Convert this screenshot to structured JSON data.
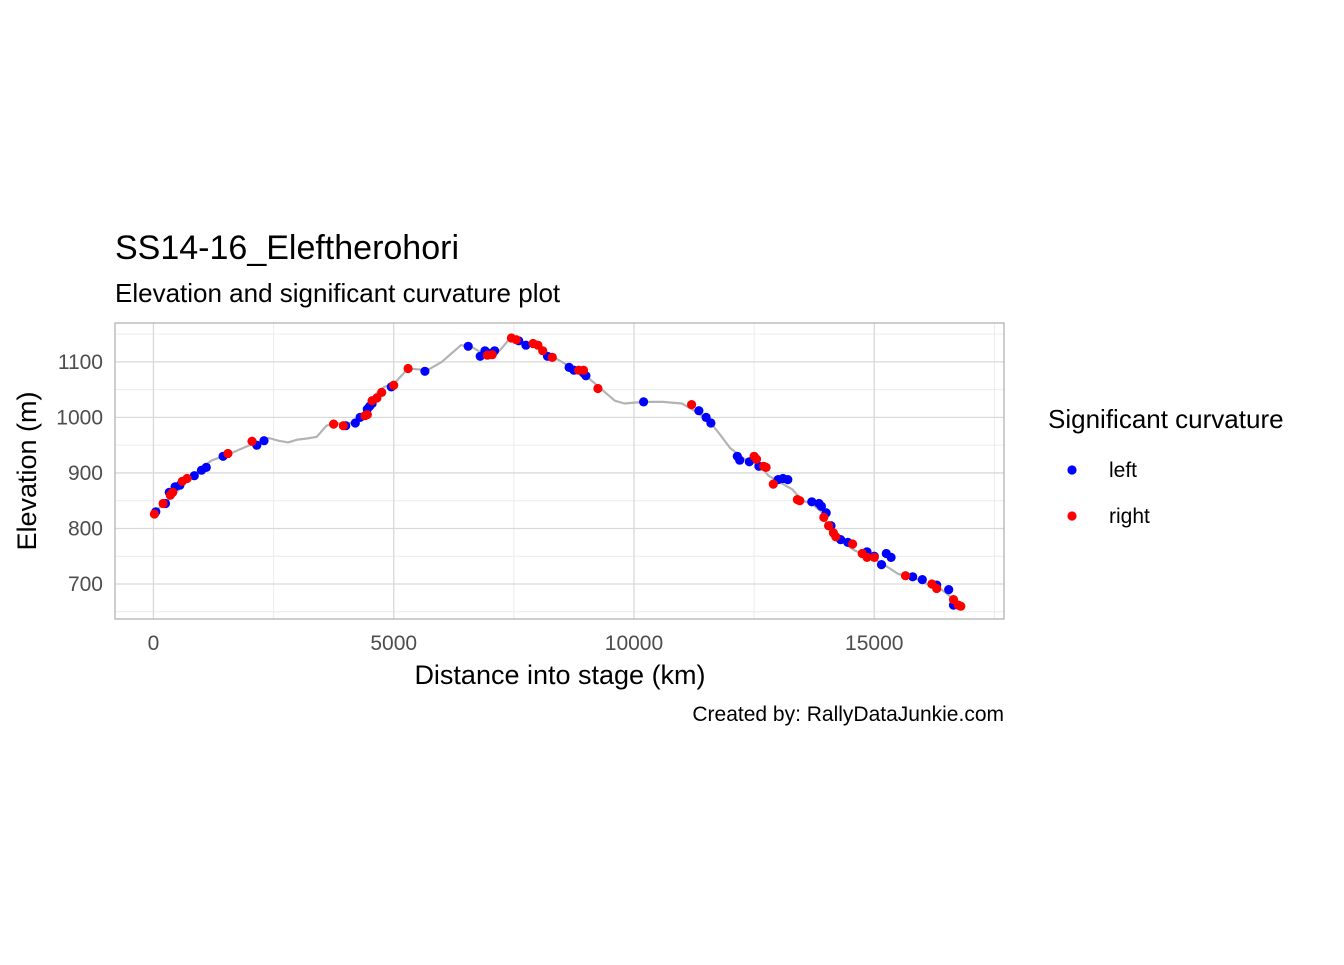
{
  "chart_data": {
    "type": "line",
    "title": "SS14-16_Eleftherohori",
    "subtitle": "Elevation and significant curvature plot",
    "xlabel": "Distance into stage (km)",
    "ylabel": "Elevation (m)",
    "caption": "Created by: RallyDataJunkie.com",
    "xlim": [
      -800,
      17700
    ],
    "ylim": [
      637,
      1170
    ],
    "x_ticks": [
      0,
      5000,
      10000,
      15000
    ],
    "x_tick_labels": [
      "0",
      "5000",
      "10000",
      "15000"
    ],
    "y_ticks": [
      700,
      800,
      900,
      1000,
      1100
    ],
    "y_tick_labels": [
      "700",
      "800",
      "900",
      "1000",
      "1100"
    ],
    "grid": true,
    "legend": {
      "title": "Significant curvature",
      "position": "right"
    },
    "colors": {
      "line": "#b3b3b3",
      "left": "#0000ff",
      "right": "#ff0000",
      "grid_major": "#d9d9d9",
      "grid_minor": "#ececec",
      "panel_border": "#b3b3b3"
    },
    "elevation_line": {
      "x": [
        0,
        400,
        800,
        1200,
        1600,
        2000,
        2200,
        2400,
        2600,
        2800,
        3000,
        3200,
        3400,
        3600,
        3800,
        4000,
        4200,
        4400,
        4600,
        4800,
        5000,
        5300,
        5700,
        6000,
        6200,
        6400,
        6600,
        6800,
        7000,
        7200,
        7400,
        7500,
        7700,
        8000,
        8300,
        8600,
        9000,
        9400,
        9600,
        9800,
        10200,
        10600,
        11000,
        11300,
        11600,
        11800,
        12000,
        12300,
        12600,
        12800,
        13000,
        13300,
        13500,
        13700,
        13900,
        14100,
        14300,
        14600,
        14900,
        15200,
        15500,
        15800,
        16100,
        16400,
        16700,
        16800
      ],
      "y": [
        828,
        858,
        895,
        922,
        935,
        950,
        955,
        963,
        958,
        955,
        960,
        962,
        965,
        985,
        990,
        988,
        992,
        1005,
        1040,
        1055,
        1060,
        1088,
        1085,
        1100,
        1115,
        1130,
        1128,
        1118,
        1115,
        1120,
        1140,
        1145,
        1135,
        1125,
        1110,
        1095,
        1075,
        1045,
        1030,
        1025,
        1028,
        1028,
        1025,
        1010,
        990,
        968,
        945,
        925,
        915,
        895,
        885,
        870,
        850,
        845,
        830,
        790,
        778,
        760,
        750,
        735,
        718,
        712,
        700,
        690,
        670,
        660
      ]
    },
    "series": [
      {
        "name": "left",
        "x": [
          50,
          250,
          330,
          450,
          550,
          850,
          1000,
          1100,
          1450,
          2150,
          2300,
          4000,
          4200,
          4300,
          4450,
          4500,
          4550,
          4950,
          5650,
          6550,
          6800,
          6900,
          7000,
          7100,
          7600,
          7750,
          8200,
          8650,
          8750,
          8950,
          9000,
          10200,
          11350,
          11500,
          11600,
          12150,
          12200,
          12400,
          12600,
          13000,
          13100,
          13200,
          13700,
          13850,
          13900,
          14000,
          14100,
          14300,
          14450,
          14850,
          15000,
          15150,
          15250,
          15350,
          15800,
          16000,
          16300,
          16550,
          16650
        ],
        "y": [
          830,
          845,
          865,
          875,
          878,
          895,
          905,
          910,
          930,
          950,
          958,
          985,
          990,
          1000,
          1015,
          1020,
          1025,
          1055,
          1083,
          1128,
          1110,
          1120,
          1115,
          1120,
          1138,
          1130,
          1110,
          1090,
          1085,
          1080,
          1075,
          1028,
          1012,
          1000,
          990,
          930,
          923,
          920,
          912,
          888,
          890,
          888,
          848,
          845,
          840,
          828,
          805,
          780,
          775,
          758,
          750,
          735,
          755,
          748,
          713,
          708,
          698,
          690,
          662
        ]
      },
      {
        "name": "right",
        "x": [
          20,
          200,
          350,
          400,
          600,
          700,
          1550,
          2050,
          3750,
          3950,
          4400,
          4450,
          4550,
          4650,
          4750,
          5000,
          5300,
          6950,
          7050,
          7450,
          7550,
          7900,
          8000,
          8100,
          8300,
          8850,
          8950,
          9250,
          11200,
          12500,
          12550,
          12700,
          12750,
          12900,
          13400,
          13450,
          13950,
          14050,
          14150,
          14200,
          14550,
          14750,
          14850,
          15000,
          15650,
          16200,
          16300,
          16650,
          16750,
          16800
        ],
        "y": [
          826,
          845,
          860,
          865,
          885,
          890,
          935,
          957,
          988,
          985,
          1003,
          1005,
          1030,
          1035,
          1045,
          1058,
          1088,
          1112,
          1113,
          1143,
          1140,
          1133,
          1130,
          1120,
          1108,
          1085,
          1085,
          1052,
          1023,
          930,
          925,
          912,
          910,
          880,
          852,
          850,
          820,
          805,
          792,
          785,
          772,
          755,
          748,
          748,
          715,
          700,
          692,
          672,
          662,
          660
        ]
      }
    ]
  }
}
